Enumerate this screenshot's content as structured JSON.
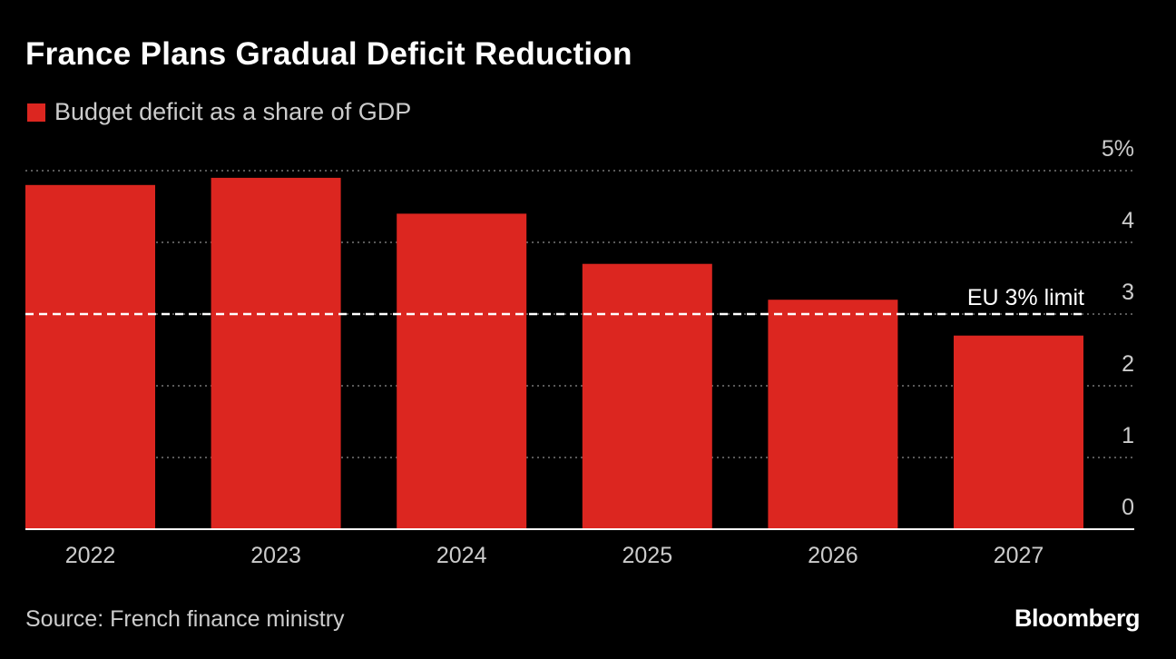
{
  "chart_data": {
    "type": "bar",
    "title": "France Plans Gradual Deficit Reduction",
    "legend": [
      {
        "name": "Budget deficit as a share of GDP",
        "color": "#dc2620"
      }
    ],
    "categories": [
      "2022",
      "2023",
      "2024",
      "2025",
      "2026",
      "2027"
    ],
    "values": [
      4.8,
      4.9,
      4.4,
      3.7,
      3.2,
      2.7
    ],
    "ylim": [
      0,
      5
    ],
    "yticks": [
      0,
      1,
      2,
      3,
      4,
      5
    ],
    "ytick_labels": [
      "0",
      "1",
      "2",
      "3",
      "4",
      "5%"
    ],
    "grid": true,
    "reference_line": {
      "value": 3,
      "label": "EU 3% limit"
    },
    "xlabel": "",
    "ylabel": ""
  },
  "source": "Source: French finance ministry",
  "brand": "Bloomberg"
}
